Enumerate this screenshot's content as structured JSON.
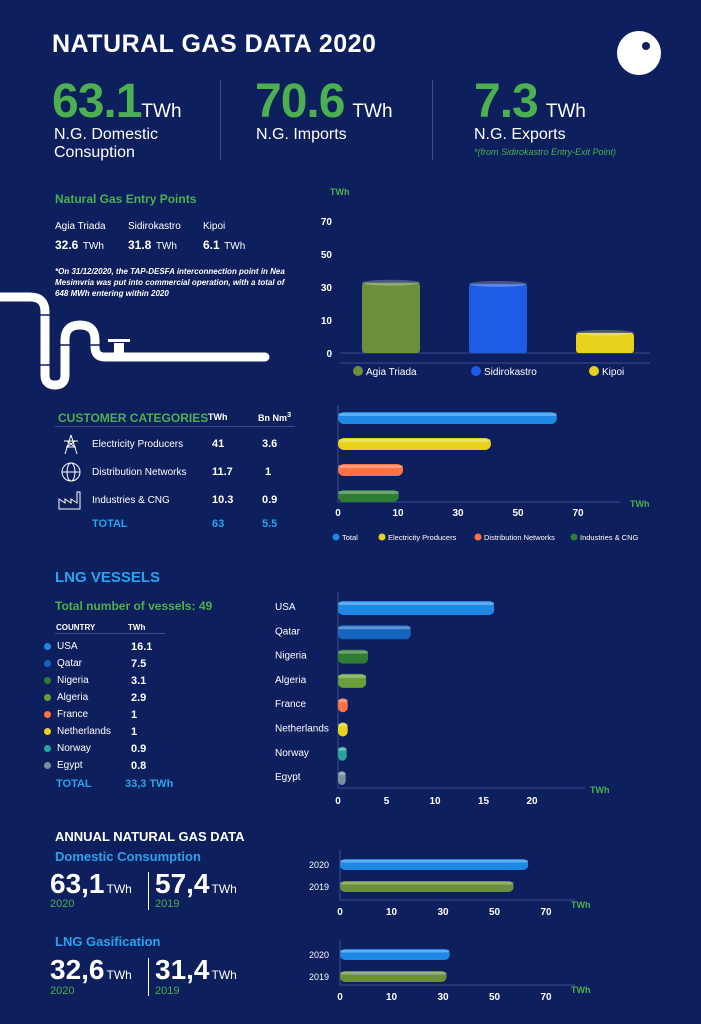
{
  "title": "NATURAL GAS DATA 2020",
  "kpis": [
    {
      "value": "63.1",
      "unit": "TWh",
      "label": "N.G. Domestic Consuption",
      "note": ""
    },
    {
      "value": "70.6",
      "unit": "TWh",
      "label": "N.G. Imports",
      "note": ""
    },
    {
      "value": "7.3",
      "unit": "TWh",
      "label": "N.G. Exports",
      "note": "*(from Sidirokastro Entry-Exit Point)"
    }
  ],
  "entry_points": {
    "title": "Natural Gas Entry Points",
    "items": [
      {
        "name": "Agia Triada",
        "value": "32.6",
        "unit": "TWh"
      },
      {
        "name": "Sidirokastro",
        "value": "31.8",
        "unit": "TWh"
      },
      {
        "name": "Kipoi",
        "value": "6.1",
        "unit": "TWh"
      }
    ],
    "footnote": "*On 31/12/2020, the TAP-DESFA interconnection point in Nea Mesimvria was put into commercial operation, with a total of 648 MWh entering within 2020"
  },
  "customer_categories": {
    "title": "CUSTOMER CATEGORIES",
    "col1": "TWh",
    "col2": "Bn Nm",
    "col2_sup": "3",
    "rows": [
      {
        "label": "Electricity Producers",
        "twh": "41",
        "bnm3": "3.6",
        "icon": "transmission-tower-icon"
      },
      {
        "label": "Distribution Networks",
        "twh": "11.7",
        "bnm3": "1",
        "icon": "network-globe-icon"
      },
      {
        "label": "Industries & CNG",
        "twh": "10.3",
        "bnm3": "0.9",
        "icon": "factory-icon"
      }
    ],
    "total": {
      "label": "TOTAL",
      "twh": "63",
      "bnm3": "5.5"
    }
  },
  "lng": {
    "title": "LNG VESSELS",
    "subtitle": "Total number of vessels: 49",
    "col_country": "COUNTRY",
    "col_twh": "TWh",
    "rows": [
      {
        "country": "USA",
        "twh": "16.1",
        "color": "#1e88e5"
      },
      {
        "country": "Qatar",
        "twh": "7.5",
        "color": "#1565c0"
      },
      {
        "country": "Nigeria",
        "twh": "3.1",
        "color": "#2e7d32"
      },
      {
        "country": "Algeria",
        "twh": "2.9",
        "color": "#689f38"
      },
      {
        "country": "France",
        "twh": "1",
        "color": "#ff7043"
      },
      {
        "country": "Netherlands",
        "twh": "1",
        "color": "#e6d21a"
      },
      {
        "country": "Norway",
        "twh": "0.9",
        "color": "#26a69a"
      },
      {
        "country": "Egypt",
        "twh": "0.8",
        "color": "#78909c"
      }
    ],
    "total_label": "TOTAL",
    "total_value": "33,3 TWh"
  },
  "annual": {
    "title": "ANNUAL NATURAL GAS DATA",
    "blocks": [
      {
        "subtitle": "Domestic Consumption",
        "v2020": "63,1",
        "v2019": "57,4",
        "unit": "TWh",
        "y2020": "2020",
        "y2019": "2019"
      },
      {
        "subtitle": "LNG Gasification",
        "v2020": "32,6",
        "v2019": "31,4",
        "unit": "TWh",
        "y2020": "2020",
        "y2019": "2019"
      }
    ]
  },
  "colors": {
    "background": "#0d1f5c",
    "green": "#4caf50",
    "blue": "#29a3ef",
    "yellow": "#e6d21a",
    "orange": "#ff7043",
    "olive": "#6b8f3a"
  },
  "chart_data": [
    {
      "type": "bar",
      "ylabel": "TWh",
      "categories": [
        "Agia Triada",
        "Sidirokastro",
        "Kipoi"
      ],
      "values": [
        32.6,
        31.8,
        6.1
      ],
      "colors": [
        "#6b8f3a",
        "#1e5ce6",
        "#e6d21a"
      ],
      "yticks": [
        0,
        10,
        30,
        50,
        70
      ],
      "legend": [
        "Agia Triada",
        "Sidirokastro",
        "Kipoi"
      ]
    },
    {
      "type": "bar",
      "orientation": "horizontal",
      "xlabel": "TWh",
      "series": [
        {
          "name": "Total",
          "value": 63,
          "color": "#1e88e5"
        },
        {
          "name": "Electricity Producers",
          "value": 41,
          "color": "#e6d21a"
        },
        {
          "name": "Distribution Networks",
          "value": 11.7,
          "color": "#ff7043"
        },
        {
          "name": "Industries & CNG",
          "value": 10.3,
          "color": "#2e7d32"
        }
      ],
      "xticks": [
        0,
        10,
        30,
        50,
        70
      ]
    },
    {
      "type": "bar",
      "orientation": "horizontal",
      "xlabel": "TWh",
      "categories": [
        "USA",
        "Qatar",
        "Nigeria",
        "Algeria",
        "France",
        "Netherlands",
        "Norway",
        "Egypt"
      ],
      "values": [
        16.1,
        7.5,
        3.1,
        2.9,
        1,
        1,
        0.9,
        0.8
      ],
      "colors": [
        "#1e88e5",
        "#1565c0",
        "#2e7d32",
        "#689f38",
        "#ff7043",
        "#e6d21a",
        "#26a69a",
        "#78909c"
      ],
      "xticks": [
        0,
        5,
        10,
        15,
        20
      ]
    },
    {
      "type": "bar",
      "orientation": "horizontal",
      "xlabel": "TWh",
      "categories": [
        "2020",
        "2019"
      ],
      "values": [
        63.1,
        57.4
      ],
      "colors": [
        "#1e88e5",
        "#6b8f3a"
      ],
      "xticks": [
        0,
        10,
        30,
        50,
        70
      ]
    },
    {
      "type": "bar",
      "orientation": "horizontal",
      "xlabel": "TWh",
      "categories": [
        "2020",
        "2019"
      ],
      "values": [
        32.6,
        31.4
      ],
      "colors": [
        "#1e88e5",
        "#6b8f3a"
      ],
      "xticks": [
        0,
        10,
        30,
        50,
        70
      ]
    }
  ]
}
